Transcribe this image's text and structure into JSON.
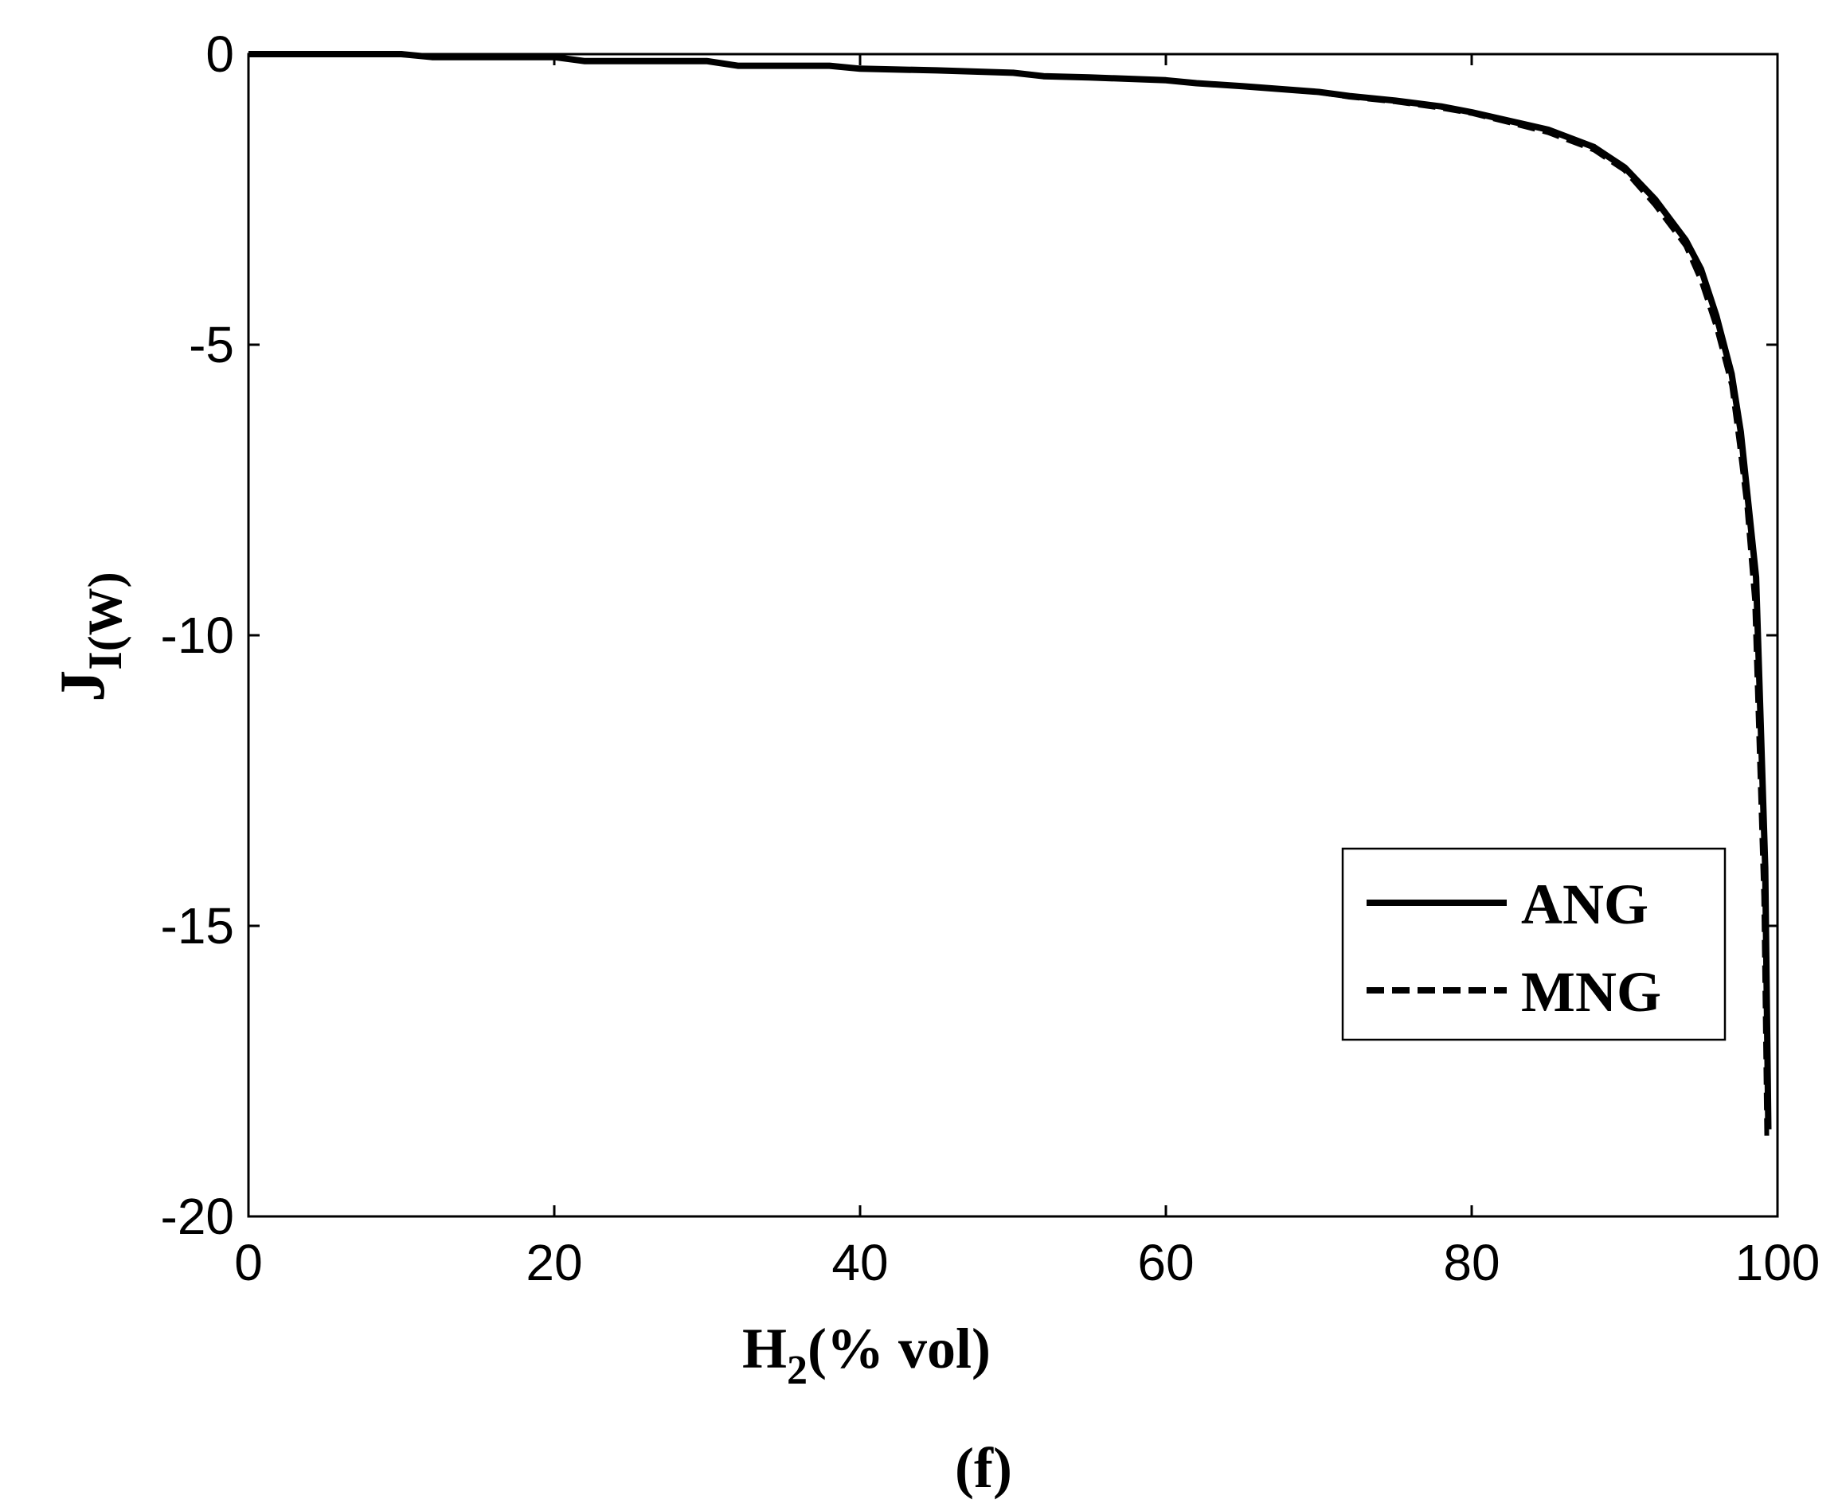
{
  "chart_data": {
    "type": "line",
    "title": "",
    "xlabel": {
      "main": "H",
      "sub": "2",
      "rest": "(% vol)"
    },
    "ylabel": {
      "main": "J",
      "sub": "I(W)"
    },
    "caption": "(f)",
    "xlim": [
      0,
      100
    ],
    "ylim": [
      -20,
      0
    ],
    "xticks": [
      0,
      20,
      40,
      60,
      80,
      100
    ],
    "yticks": [
      0,
      -5,
      -10,
      -15,
      -20
    ],
    "xtick_labels": [
      "0",
      "20",
      "40",
      "60",
      "80",
      "100"
    ],
    "ytick_labels": [
      "0",
      "-5",
      "-10",
      "-15",
      "-20"
    ],
    "grid": false,
    "legend_position": "lower-right",
    "series": [
      {
        "name": "ANG",
        "style": "solid",
        "x": [
          0,
          10,
          12,
          20,
          22,
          30,
          32,
          38,
          40,
          45,
          50,
          52,
          55,
          60,
          62,
          65,
          70,
          72,
          75,
          78,
          80,
          82,
          85,
          88,
          90,
          92,
          94,
          95,
          96,
          97,
          97.6,
          98,
          98.6,
          99.2,
          99.4
        ],
        "y": [
          0,
          0,
          -0.05,
          -0.05,
          -0.12,
          -0.12,
          -0.2,
          -0.2,
          -0.25,
          -0.28,
          -0.32,
          -0.38,
          -0.4,
          -0.45,
          -0.5,
          -0.55,
          -0.65,
          -0.72,
          -0.8,
          -0.9,
          -1.0,
          -1.12,
          -1.3,
          -1.6,
          -1.95,
          -2.5,
          -3.2,
          -3.7,
          -4.5,
          -5.5,
          -6.5,
          -7.5,
          -9.0,
          -14.0,
          -18.5
        ]
      },
      {
        "name": "MNG",
        "style": "dashed",
        "x": [
          0,
          10,
          12,
          20,
          22,
          30,
          32,
          38,
          40,
          45,
          50,
          52,
          55,
          60,
          62,
          65,
          70,
          72,
          75,
          78,
          80,
          82,
          85,
          88,
          90,
          92,
          94,
          95,
          96,
          97,
          97.5,
          98,
          98.5,
          99.1,
          99.3
        ],
        "y": [
          0,
          0,
          -0.05,
          -0.05,
          -0.12,
          -0.12,
          -0.2,
          -0.2,
          -0.25,
          -0.28,
          -0.32,
          -0.38,
          -0.4,
          -0.45,
          -0.5,
          -0.56,
          -0.66,
          -0.74,
          -0.82,
          -0.93,
          -1.02,
          -1.15,
          -1.35,
          -1.65,
          -2.0,
          -2.6,
          -3.3,
          -3.9,
          -4.7,
          -5.7,
          -6.7,
          -7.8,
          -9.4,
          -14.5,
          -18.7
        ]
      }
    ]
  }
}
